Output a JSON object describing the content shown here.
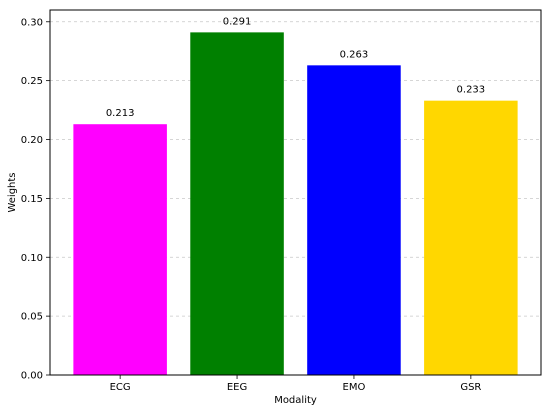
{
  "chart_data": {
    "type": "bar",
    "title": "",
    "xlabel": "Modality",
    "ylabel": "Weights",
    "categories": [
      "ECG",
      "EEG",
      "EMO",
      "GSR"
    ],
    "values": [
      0.213,
      0.291,
      0.263,
      0.233
    ],
    "data_labels": [
      "0.213",
      "0.291",
      "0.263",
      "0.233"
    ],
    "colors": [
      "#ff00ff",
      "#008000",
      "#0000ff",
      "#ffd700"
    ],
    "ylim": [
      0,
      0.31
    ],
    "yticks": [
      0.0,
      0.05,
      0.1,
      0.15,
      0.2,
      0.25,
      0.3
    ],
    "ytick_labels": [
      "0.00",
      "0.05",
      "0.10",
      "0.15",
      "0.20",
      "0.25",
      "0.30"
    ],
    "grid": "y, dashed",
    "legend": "none"
  }
}
